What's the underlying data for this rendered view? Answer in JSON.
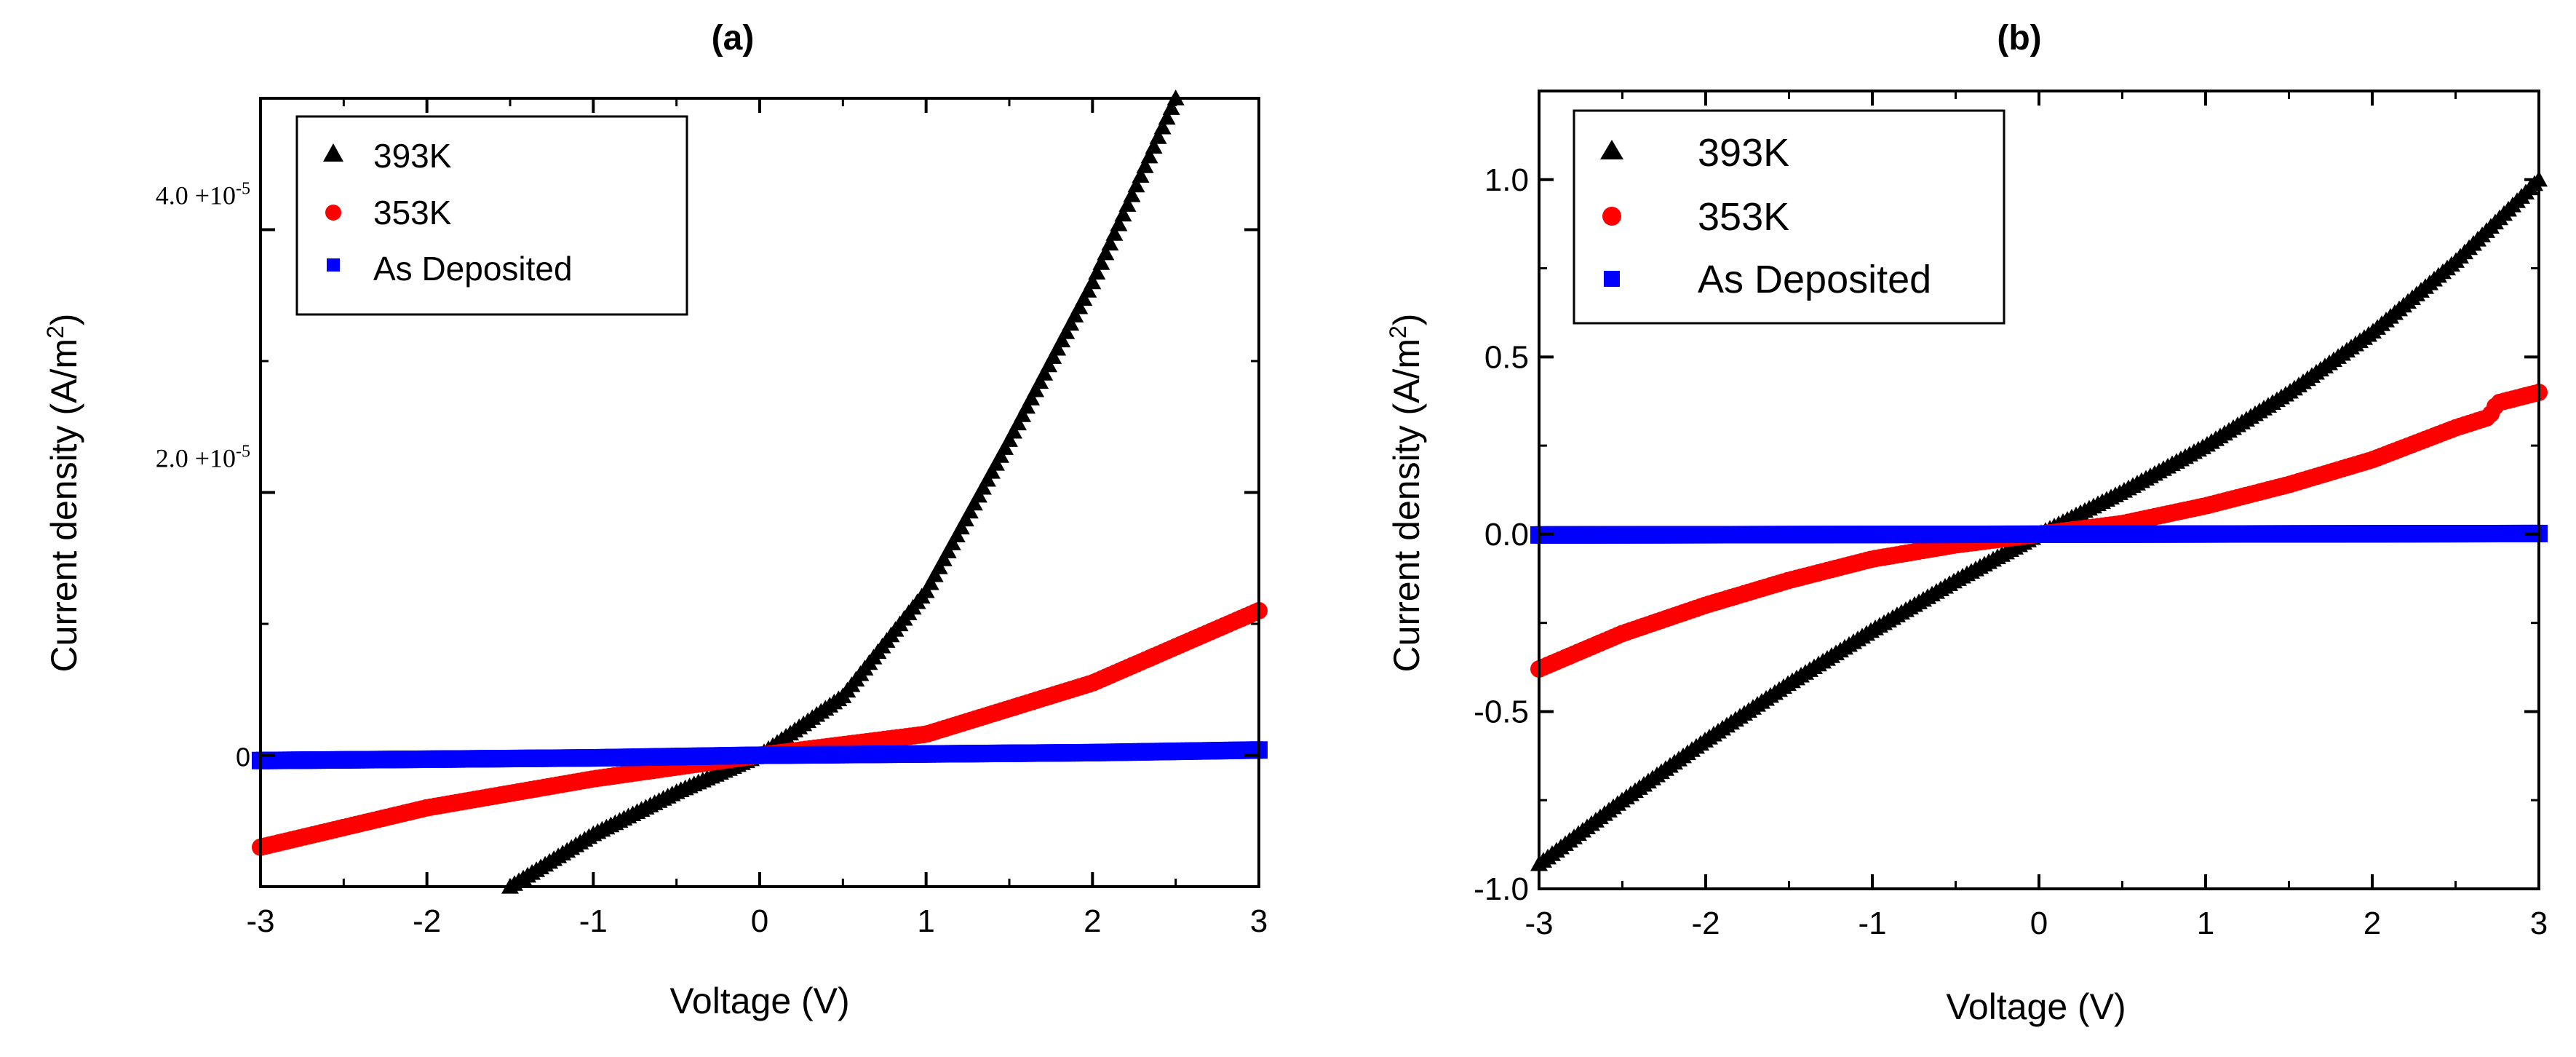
{
  "figure": {
    "panels": [
      {
        "id": "a",
        "title": "(a)",
        "xlabel": "Voltage (V)",
        "ylabel_main": "Current density (A/m",
        "ylabel_sup": "2",
        "ylabel_close": ")",
        "xticks": [
          "-3",
          "-2",
          "-1",
          "0",
          "1",
          "2",
          "3"
        ],
        "yticks": [
          {
            "value": 0,
            "label": "0"
          },
          {
            "value": 2e-05,
            "label": "2.0 +10",
            "sup": "-5"
          },
          {
            "value": 4e-05,
            "label": "4.0 +10",
            "sup": "-5"
          }
        ],
        "legend": [
          "393K",
          "353K",
          "As Deposited"
        ]
      },
      {
        "id": "b",
        "title": "(b)",
        "xlabel": "Voltage (V)",
        "ylabel_main": "Current density (A/m",
        "ylabel_sup": "2",
        "ylabel_close": ")",
        "xticks": [
          "-3",
          "-2",
          "-1",
          "0",
          "1",
          "2",
          "3"
        ],
        "yticks": [
          {
            "value": -1.0,
            "label": "-1.0"
          },
          {
            "value": -0.5,
            "label": "-0.5"
          },
          {
            "value": 0.0,
            "label": "0.0"
          },
          {
            "value": 0.5,
            "label": "0.5"
          },
          {
            "value": 1.0,
            "label": "1.0"
          }
        ],
        "legend": [
          "393K",
          "353K",
          "As Deposited"
        ]
      }
    ],
    "colors": {
      "s393": "#000000",
      "s353": "#ff0000",
      "deposited": "#0000ff",
      "axis": "#000000"
    }
  },
  "chart_data": [
    {
      "type": "scatter",
      "title": "(a)",
      "xlabel": "Voltage (V)",
      "ylabel": "Current density (A/m2)",
      "xlim": [
        -3,
        3
      ],
      "ylim": [
        -1e-05,
        5e-05
      ],
      "legend_position": "top-left",
      "series": [
        {
          "name": "393K",
          "marker": "triangle",
          "x": [
            -1.5,
            -1.0,
            -0.5,
            0,
            0.5,
            1.0,
            1.5,
            2.0,
            2.5
          ],
          "y": [
            -1e-05,
            -6e-06,
            -2.8e-06,
            0,
            4.5e-06,
            1.25e-05,
            2.4e-05,
            3.6e-05,
            5e-05
          ]
        },
        {
          "name": "353K",
          "marker": "circle",
          "x": [
            -3,
            -2,
            -1,
            0,
            1,
            2,
            3
          ],
          "y": [
            -7e-06,
            -4e-06,
            -1.8e-06,
            0,
            1.6e-06,
            5.5e-06,
            1.1e-05
          ]
        },
        {
          "name": "As Deposited",
          "marker": "square",
          "x": [
            -3,
            -2,
            -1,
            0,
            1,
            2,
            3
          ],
          "y": [
            -4e-07,
            -3e-07,
            -2e-07,
            0,
            1e-07,
            2e-07,
            4e-07
          ]
        }
      ]
    },
    {
      "type": "scatter",
      "title": "(b)",
      "xlabel": "Voltage (V)",
      "ylabel": "Current density (A/m2)",
      "xlim": [
        -3,
        3
      ],
      "ylim": [
        -1.0,
        1.25
      ],
      "legend_position": "top-left",
      "series": [
        {
          "name": "393K",
          "marker": "triangle",
          "x": [
            -3,
            -2.5,
            -2,
            -1.5,
            -1,
            -0.5,
            0,
            0.5,
            1,
            1.5,
            2,
            2.5,
            3
          ],
          "y": [
            -0.93,
            -0.75,
            -0.58,
            -0.42,
            -0.27,
            -0.13,
            0,
            0.12,
            0.25,
            0.4,
            0.57,
            0.77,
            1.0
          ]
        },
        {
          "name": "353K",
          "marker": "circle",
          "x": [
            -3,
            -2.5,
            -2,
            -1.5,
            -1,
            -0.5,
            0,
            0.5,
            1,
            1.5,
            2,
            2.5,
            2.7,
            2.75,
            3
          ],
          "y": [
            -0.38,
            -0.28,
            -0.2,
            -0.13,
            -0.07,
            -0.03,
            0,
            0.03,
            0.08,
            0.14,
            0.21,
            0.3,
            0.33,
            0.37,
            0.4
          ]
        },
        {
          "name": "As Deposited",
          "marker": "square",
          "x": [
            -3,
            0,
            3
          ],
          "y": [
            -0.002,
            0,
            0.002
          ]
        }
      ]
    }
  ]
}
